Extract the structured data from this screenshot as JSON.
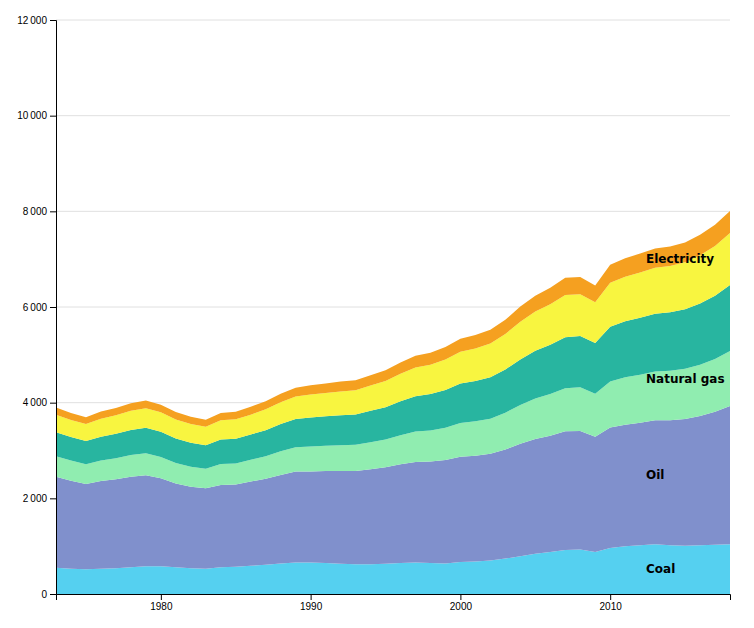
{
  "chart_data": {
    "type": "area",
    "stacked": true,
    "grid": true,
    "x": [
      1973,
      1974,
      1975,
      1976,
      1977,
      1978,
      1979,
      1980,
      1981,
      1982,
      1983,
      1984,
      1985,
      1986,
      1987,
      1988,
      1989,
      1990,
      1991,
      1992,
      1993,
      1994,
      1995,
      1996,
      1997,
      1998,
      1999,
      2000,
      2001,
      2002,
      2003,
      2004,
      2005,
      2006,
      2007,
      2008,
      2009,
      2010,
      2011,
      2012,
      2013,
      2014,
      2015,
      2016,
      2017,
      2018
    ],
    "series": [
      {
        "name": "Coal",
        "color": "#55d0f0",
        "values": [
          550,
          530,
          520,
          530,
          540,
          560,
          580,
          580,
          560,
          540,
          530,
          560,
          570,
          590,
          610,
          640,
          660,
          660,
          650,
          630,
          620,
          620,
          630,
          650,
          660,
          650,
          640,
          670,
          680,
          700,
          740,
          790,
          840,
          880,
          920,
          930,
          880,
          960,
          1000,
          1020,
          1040,
          1020,
          1010,
          1020,
          1030,
          1040
        ]
      },
      {
        "name": "Oil",
        "color": "#8090cc",
        "values": [
          1900,
          1840,
          1780,
          1830,
          1860,
          1890,
          1900,
          1840,
          1750,
          1700,
          1680,
          1720,
          1720,
          1760,
          1800,
          1850,
          1900,
          1900,
          1920,
          1940,
          1950,
          1990,
          2020,
          2060,
          2100,
          2120,
          2160,
          2200,
          2210,
          2230,
          2280,
          2350,
          2400,
          2430,
          2480,
          2480,
          2410,
          2520,
          2540,
          2560,
          2590,
          2610,
          2650,
          2700,
          2780,
          2890
        ]
      },
      {
        "name": "Natural gas",
        "color": "#90edb0",
        "values": [
          430,
          420,
          415,
          430,
          440,
          455,
          460,
          445,
          430,
          420,
          410,
          440,
          440,
          455,
          470,
          495,
          510,
          525,
          530,
          540,
          548,
          565,
          580,
          610,
          635,
          650,
          675,
          705,
          720,
          735,
          770,
          810,
          845,
          870,
          900,
          910,
          895,
          965,
          990,
          1005,
          1020,
          1035,
          1050,
          1075,
          1105,
          1150
        ]
      },
      {
        "color": "#28b5a0",
        "values": [
          500,
          490,
          485,
          500,
          510,
          525,
          535,
          525,
          510,
          500,
          490,
          510,
          515,
          530,
          545,
          570,
          590,
          605,
          615,
          625,
          635,
          655,
          675,
          710,
          740,
          760,
          790,
          825,
          845,
          865,
          905,
          955,
          1000,
          1030,
          1070,
          1075,
          1060,
          1140,
          1170,
          1190,
          1210,
          1225,
          1245,
          1280,
          1320,
          1380
        ]
      },
      {
        "name": "Electricity",
        "color": "#f8f540",
        "values": [
          370,
          360,
          355,
          375,
          385,
          400,
          408,
          408,
          400,
          393,
          387,
          400,
          408,
          415,
          435,
          455,
          467,
          480,
          488,
          500,
          507,
          527,
          547,
          573,
          600,
          613,
          640,
          667,
          680,
          707,
          740,
          787,
          820,
          847,
          880,
          873,
          853,
          920,
          933,
          947,
          960,
          967,
          980,
          1007,
          1040,
          1087
        ]
      },
      {
        "color": "#f5a020",
        "values": [
          150,
          145,
          142,
          150,
          155,
          158,
          160,
          158,
          153,
          150,
          148,
          153,
          158,
          163,
          170,
          178,
          185,
          192,
          198,
          205,
          210,
          218,
          225,
          235,
          244,
          250,
          258,
          270,
          278,
          285,
          298,
          318,
          332,
          345,
          360,
          360,
          353,
          380,
          388,
          395,
          402,
          408,
          415,
          428,
          442,
          462
        ]
      }
    ],
    "xlim": [
      1973,
      2018
    ],
    "xticks": [
      1980,
      1990,
      2000,
      2010
    ],
    "ylim": [
      0,
      12000
    ],
    "yticks": [
      0,
      {
        "value": 2000,
        "label": "2 000"
      },
      {
        "value": 4000,
        "label": "4 000"
      },
      {
        "value": 6000,
        "label": "6 000"
      },
      {
        "value": 8000,
        "label": "8 000"
      },
      {
        "value": 10000,
        "label": "10 000"
      },
      {
        "value": 12000,
        "label": "12 000"
      }
    ]
  }
}
